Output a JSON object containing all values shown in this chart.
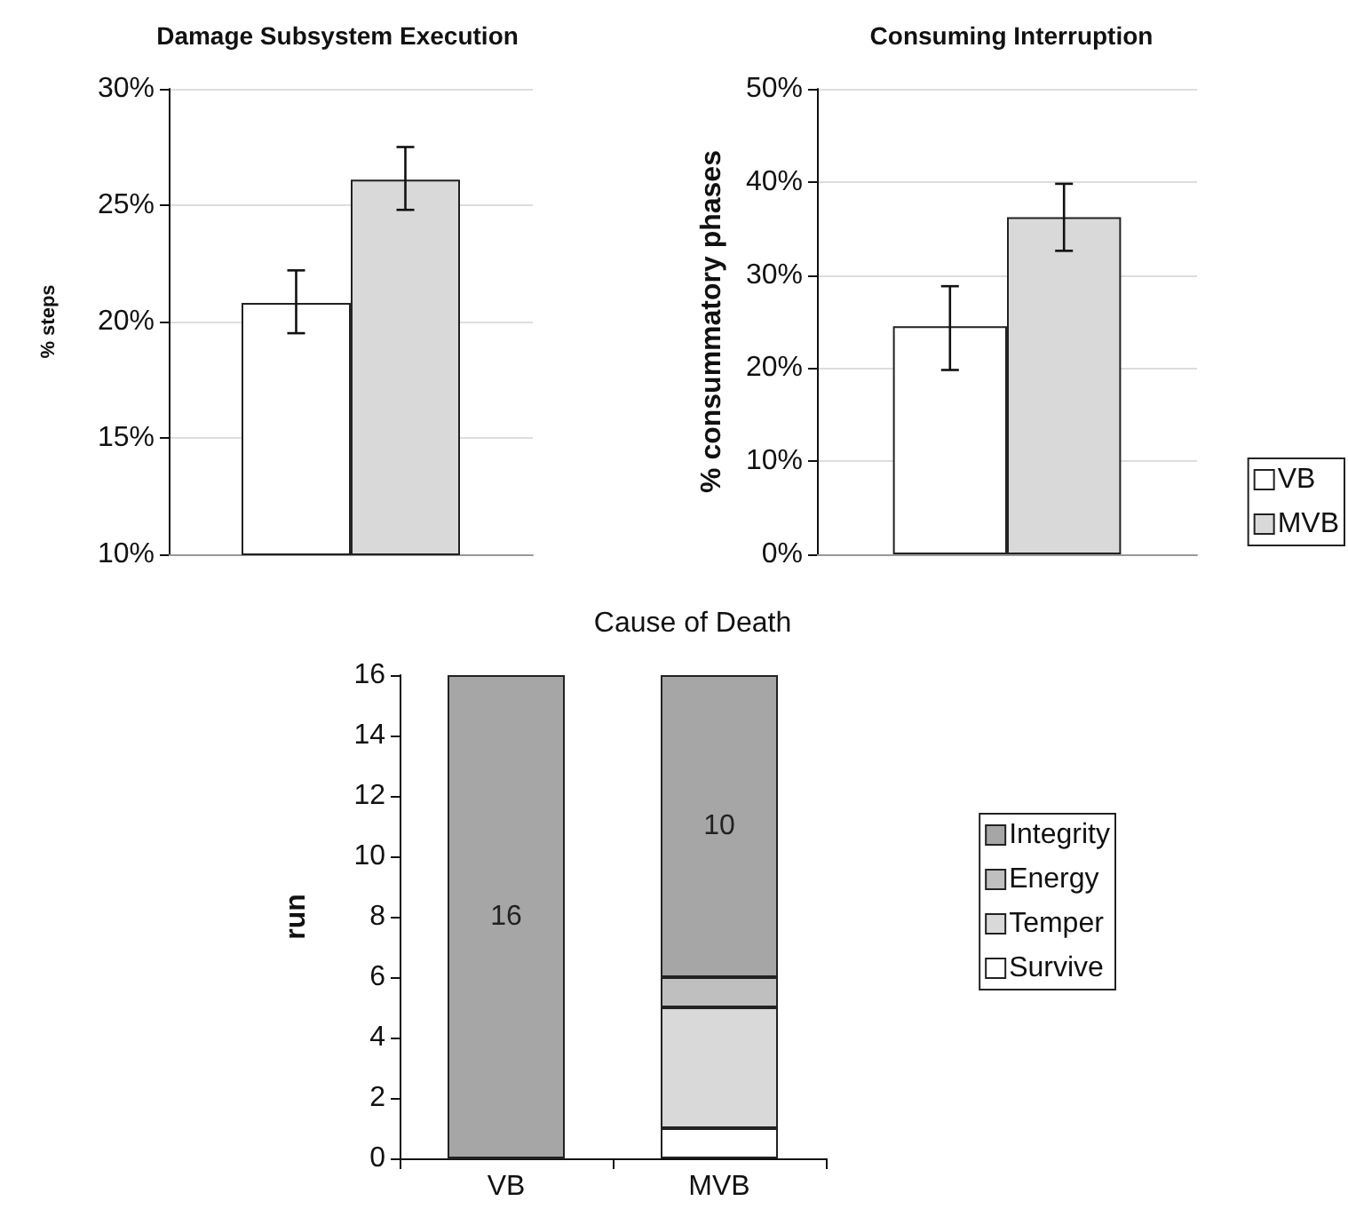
{
  "chart_data": [
    {
      "type": "bar",
      "title": "Damage Subsystem Execution",
      "ylabel": "% steps",
      "categories": [
        null
      ],
      "series": [
        {
          "color": "#ffffff",
          "values": [
            20.8
          ],
          "errors": [
            [
              19.5,
              22.2
            ]
          ]
        },
        {
          "color": "#d9d9d9",
          "values": [
            26.1
          ],
          "errors": [
            [
              24.8,
              27.5
            ]
          ]
        }
      ],
      "ylim": [
        10,
        30
      ],
      "yticks": [
        {
          "value": 10,
          "label": "10%"
        },
        {
          "value": 15,
          "label": "15%"
        },
        {
          "value": 20,
          "label": "20%"
        },
        {
          "value": 25,
          "label": "25%"
        },
        {
          "value": 30,
          "label": "30%"
        }
      ],
      "grid": "y",
      "legend": false
    },
    {
      "type": "bar",
      "title": "Consuming Interruption",
      "ylabel": "% consummatory phases",
      "categories": [
        null
      ],
      "series": [
        {
          "name": "VB",
          "color": "#ffffff",
          "values": [
            24.5
          ],
          "errors": [
            [
              19.8,
              28.8
            ]
          ]
        },
        {
          "name": "MVB",
          "color": "#d9d9d9",
          "values": [
            36.2
          ],
          "errors": [
            [
              32.6,
              39.8
            ]
          ]
        }
      ],
      "ylim": [
        0,
        50
      ],
      "yticks": [
        {
          "value": 0,
          "label": "0%"
        },
        {
          "value": 10,
          "label": "10%"
        },
        {
          "value": 20,
          "label": "20%"
        },
        {
          "value": 30,
          "label": "30%"
        },
        {
          "value": 40,
          "label": "40%"
        },
        {
          "value": 50,
          "label": "50%"
        }
      ],
      "grid": "y",
      "legend": "bottom right"
    },
    {
      "type": "bar",
      "title": "Cause of Death",
      "ylabel": "run",
      "categories": [
        "VB",
        "MVB"
      ],
      "stacked": true,
      "series": [
        {
          "name": "Survive",
          "color": "#ffffff",
          "values": [
            0,
            1
          ],
          "value_labels": [
            null,
            null
          ]
        },
        {
          "name": "Temper",
          "color": "#d9d9d9",
          "values": [
            0,
            4
          ],
          "value_labels": [
            null,
            null
          ]
        },
        {
          "name": "Energy",
          "color": "#bfbfbf",
          "values": [
            0,
            1
          ],
          "value_labels": [
            null,
            null
          ]
        },
        {
          "name": "Integrity",
          "color": "#a6a6a6",
          "values": [
            16,
            10
          ],
          "value_labels": [
            "16",
            "10"
          ]
        }
      ],
      "ylim": [
        0,
        16
      ],
      "yticks": [
        0,
        2,
        4,
        6,
        8,
        10,
        12,
        14,
        16
      ],
      "grid": false,
      "legend": "right"
    }
  ]
}
